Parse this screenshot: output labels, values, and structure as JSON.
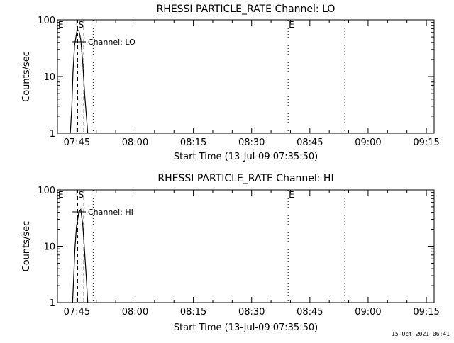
{
  "chart_data": [
    {
      "type": "line",
      "title": "RHESSI PARTICLE_RATE Channel: LO",
      "xlabel": "Start Time (13-Jul-09 07:35:50)",
      "ylabel": "Counts/sec",
      "y_scale": "log",
      "ylim": [
        1,
        100
      ],
      "y_ticks": [
        "1",
        "10",
        "100"
      ],
      "x_axis": {
        "range_minutes_after_0735": [
          5.0,
          102.0
        ],
        "tick_minutes": [
          10,
          25,
          40,
          55,
          70,
          85,
          100
        ]
      },
      "x_tick_labels": [
        "07:45",
        "08:00",
        "08:15",
        "08:30",
        "08:45",
        "09:00",
        "09:15"
      ],
      "grid": false,
      "legend": {
        "label": "Channel: LO",
        "position": "top-left"
      },
      "markers": [
        {
          "label": "E",
          "minute": 5.0,
          "style": "dotted"
        },
        {
          "label": "S",
          "minute": 10.2,
          "style": "dashed"
        },
        {
          "label": "",
          "minute": 11.8,
          "style": "dashed"
        },
        {
          "label": "",
          "minute": 14.2,
          "style": "dotted"
        },
        {
          "label": "E",
          "minute": 64.4,
          "style": "dotted"
        },
        {
          "label": "",
          "minute": 79.0,
          "style": "dotted"
        }
      ],
      "series": [
        {
          "name": "Channel: LO",
          "x": [
            8.3,
            8.7,
            9.0,
            9.4,
            10.0,
            10.5,
            11.0,
            11.5,
            12.0,
            12.5,
            12.8
          ],
          "y": [
            1.0,
            3.0,
            12.0,
            35.0,
            63.0,
            66.0,
            45.0,
            18.0,
            5.0,
            1.8,
            1.0
          ]
        }
      ]
    },
    {
      "type": "line",
      "title": "RHESSI PARTICLE_RATE Channel: HI",
      "xlabel": "Start Time (13-Jul-09 07:35:50)",
      "ylabel": "Counts/sec",
      "y_scale": "log",
      "ylim": [
        1,
        100
      ],
      "y_ticks": [
        "1",
        "10",
        "100"
      ],
      "x_axis": {
        "range_minutes_after_0735": [
          5.0,
          102.0
        ],
        "tick_minutes": [
          10,
          25,
          40,
          55,
          70,
          85,
          100
        ]
      },
      "x_tick_labels": [
        "07:45",
        "08:00",
        "08:15",
        "08:30",
        "08:45",
        "09:00",
        "09:15"
      ],
      "grid": false,
      "legend": {
        "label": "Channel: HI",
        "position": "top-left"
      },
      "markers": [
        {
          "label": "E",
          "minute": 5.0,
          "style": "dotted"
        },
        {
          "label": "S",
          "minute": 10.2,
          "style": "dashed"
        },
        {
          "label": "",
          "minute": 11.8,
          "style": "dashed"
        },
        {
          "label": "",
          "minute": 14.2,
          "style": "dotted"
        },
        {
          "label": "E",
          "minute": 64.4,
          "style": "dotted"
        },
        {
          "label": "",
          "minute": 79.0,
          "style": "dotted"
        }
      ],
      "series": [
        {
          "name": "Channel: HI",
          "x": [
            8.9,
            9.2,
            9.5,
            9.9,
            10.5,
            11.0,
            11.5,
            12.0,
            12.4,
            12.8
          ],
          "y": [
            1.0,
            3.0,
            9.0,
            22.0,
            40.0,
            45.0,
            25.0,
            8.0,
            3.0,
            1.0
          ]
        }
      ]
    }
  ],
  "footer": {
    "timestamp": "15-Oct-2021 06:41"
  }
}
